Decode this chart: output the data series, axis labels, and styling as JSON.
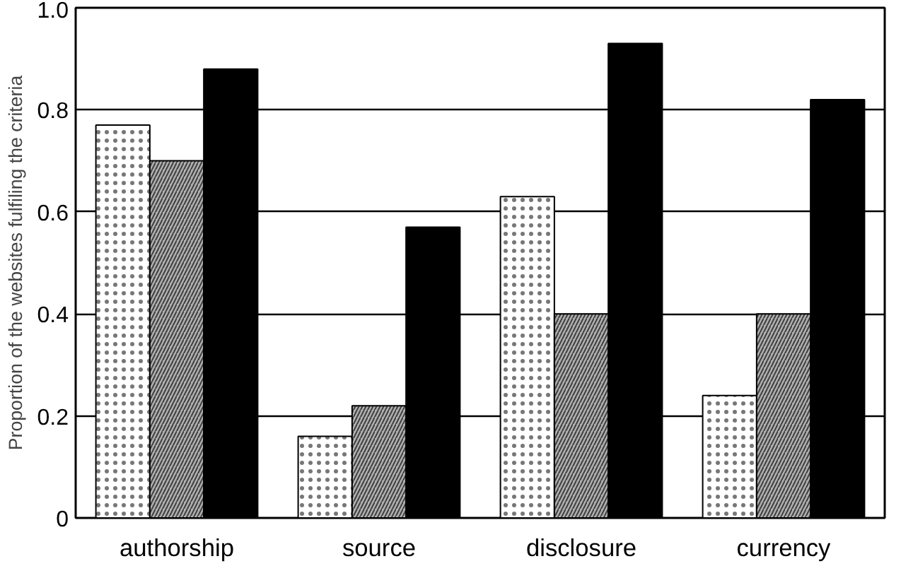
{
  "chart_data": {
    "type": "bar",
    "ylabel": "Proportion of the websites fulfiling the criteria",
    "categories": [
      "authorship",
      "source",
      "disclosure",
      "currency"
    ],
    "series": [
      {
        "color": "#ffffff",
        "values": [
          0.77,
          0.16,
          0.63,
          0.24
        ]
      },
      {
        "color": "#b0b0b0",
        "values": [
          0.7,
          0.22,
          0.4,
          0.4
        ]
      },
      {
        "color": "#000000",
        "values": [
          0.88,
          0.57,
          0.93,
          0.82
        ]
      }
    ],
    "ylim": [
      0,
      1.0
    ],
    "yticks": [
      0,
      {
        "value": 0.2,
        "label": "0.2"
      },
      {
        "value": 0.4,
        "label": "0.4"
      },
      {
        "value": 0.6,
        "label": "0.6"
      },
      {
        "value": 0.8,
        "label": "0.8"
      },
      {
        "value": 1.0,
        "label": "1.0"
      }
    ],
    "grid": "y"
  }
}
